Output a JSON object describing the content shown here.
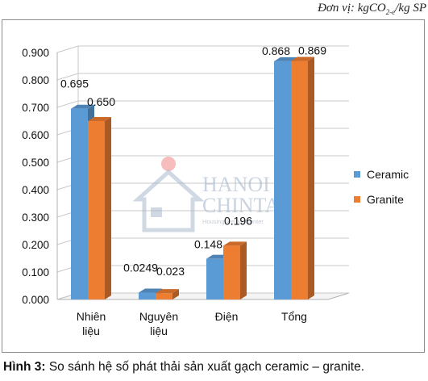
{
  "unit": {
    "prefix": "Đơn vị: kgCO",
    "sub": "2-e",
    "suffix": "/kg SP"
  },
  "watermark": {
    "line1": "HANOI",
    "line2": "CHINTAI",
    "line3": "Housing Rental Center"
  },
  "caption": {
    "label": "Hình 3:",
    "text": " So sánh hệ số phát thải sản xuất gạch ceramic – granite."
  },
  "colors": {
    "ceramic": "#5b9bd5",
    "granite": "#ed7d31"
  },
  "chart_data": {
    "type": "bar",
    "categories": [
      "Nhiên liệu",
      "Nguyên liệu",
      "Điện",
      "Tổng"
    ],
    "series": [
      {
        "name": "Ceramic",
        "values": [
          0.695,
          0.0249,
          0.148,
          0.868
        ],
        "labels": [
          "0.695",
          "0.0249",
          "0.148",
          "0.868"
        ]
      },
      {
        "name": "Granite",
        "values": [
          0.65,
          0.023,
          0.196,
          0.869
        ],
        "labels": [
          "0.650",
          "0.023",
          "0.196",
          "0.869"
        ]
      }
    ],
    "yticks": [
      "0.000",
      "0.100",
      "0.200",
      "0.300",
      "0.400",
      "0.500",
      "0.600",
      "0.700",
      "0.800",
      "0.900"
    ],
    "ylim": [
      0,
      0.9
    ],
    "grid": true,
    "legend_position": "right",
    "style": "3d clustered columns"
  }
}
